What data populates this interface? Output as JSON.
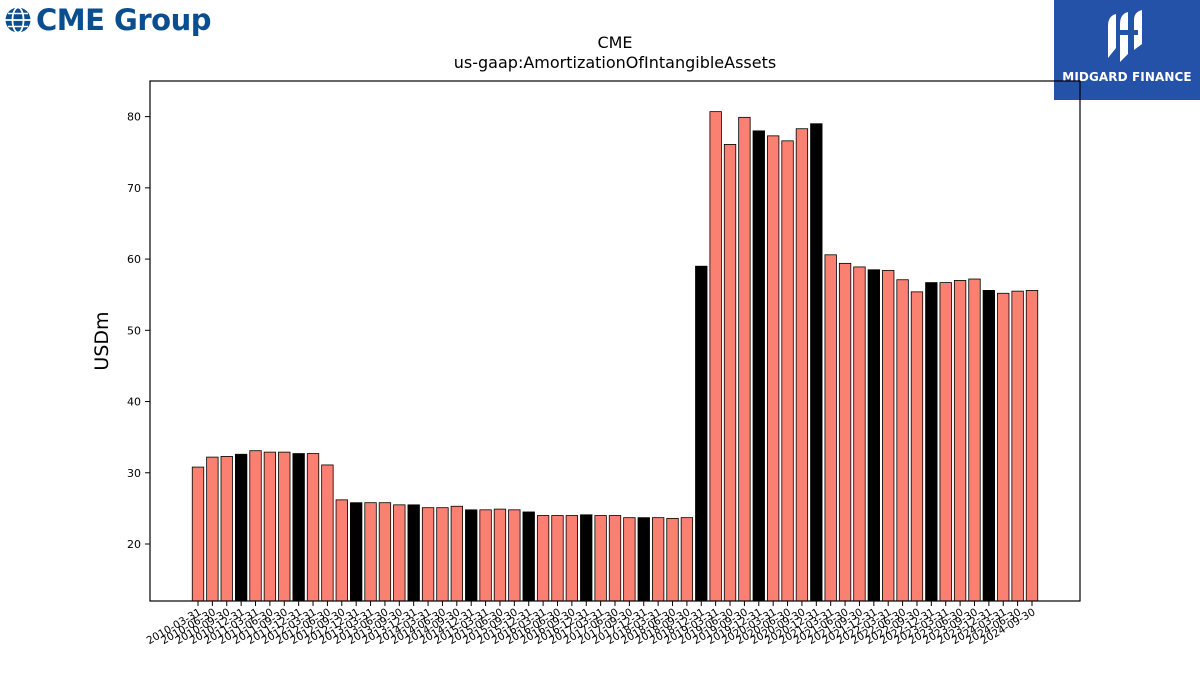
{
  "header": {
    "brand_name": "CME Group",
    "badge_text": "MIDGARD FINANCE",
    "logo_icon": "globe-icon",
    "badge_icon": "midgard-logo-icon"
  },
  "chart_data": {
    "type": "bar",
    "title": "CME",
    "subtitle": "us-gaap:AmortizationOfIntangibleAssets",
    "xlabel": "",
    "ylabel": "USDm",
    "ylim": [
      12,
      85
    ],
    "yticks": [
      20,
      30,
      40,
      50,
      60,
      70,
      80
    ],
    "grid": false,
    "colors": {
      "default": "#fa8072",
      "highlight": "#000000",
      "edge": "#000000"
    },
    "categories": [
      "2010-03-31",
      "2010-06-30",
      "2010-09-30",
      "2010-12-31",
      "2011-03-31",
      "2011-06-30",
      "2011-09-30",
      "2011-12-31",
      "2012-03-31",
      "2012-06-30",
      "2012-09-30",
      "2012-12-31",
      "2013-03-31",
      "2013-06-30",
      "2013-09-30",
      "2013-12-31",
      "2014-03-31",
      "2014-06-30",
      "2014-09-30",
      "2014-12-31",
      "2015-03-31",
      "2015-06-30",
      "2015-09-30",
      "2015-12-31",
      "2016-03-31",
      "2016-06-30",
      "2016-09-30",
      "2016-12-31",
      "2017-03-31",
      "2017-06-30",
      "2017-09-30",
      "2017-12-31",
      "2018-03-31",
      "2018-06-30",
      "2018-09-30",
      "2018-12-31",
      "2019-03-31",
      "2019-06-30",
      "2019-09-30",
      "2019-12-31",
      "2020-03-31",
      "2020-06-30",
      "2020-09-30",
      "2020-12-31",
      "2021-03-31",
      "2021-06-30",
      "2021-09-30",
      "2021-12-31",
      "2022-03-31",
      "2022-06-30",
      "2022-09-30",
      "2022-12-31",
      "2023-03-31",
      "2023-06-30",
      "2023-09-30",
      "2023-12-31",
      "2024-03-31",
      "2024-06-30",
      "2024-09-30"
    ],
    "values": [
      30.8,
      32.2,
      32.3,
      32.6,
      33.1,
      32.9,
      32.9,
      32.7,
      32.7,
      31.1,
      26.2,
      25.8,
      25.8,
      25.8,
      25.5,
      25.5,
      25.1,
      25.1,
      25.3,
      24.8,
      24.8,
      24.9,
      24.8,
      24.5,
      24.0,
      24.0,
      24.0,
      24.1,
      24.0,
      24.0,
      23.7,
      23.7,
      23.7,
      23.6,
      23.7,
      59.0,
      80.7,
      76.1,
      79.9,
      78.0,
      77.3,
      76.6,
      78.3,
      79.0,
      60.6,
      59.4,
      58.9,
      58.5,
      58.4,
      57.1,
      55.4,
      56.7,
      56.7,
      57.0,
      57.2,
      55.6,
      55.2,
      55.5,
      55.6
    ],
    "highlight_indices": [
      3,
      7,
      11,
      15,
      19,
      23,
      27,
      31,
      35,
      39,
      43,
      47,
      51,
      55
    ]
  }
}
